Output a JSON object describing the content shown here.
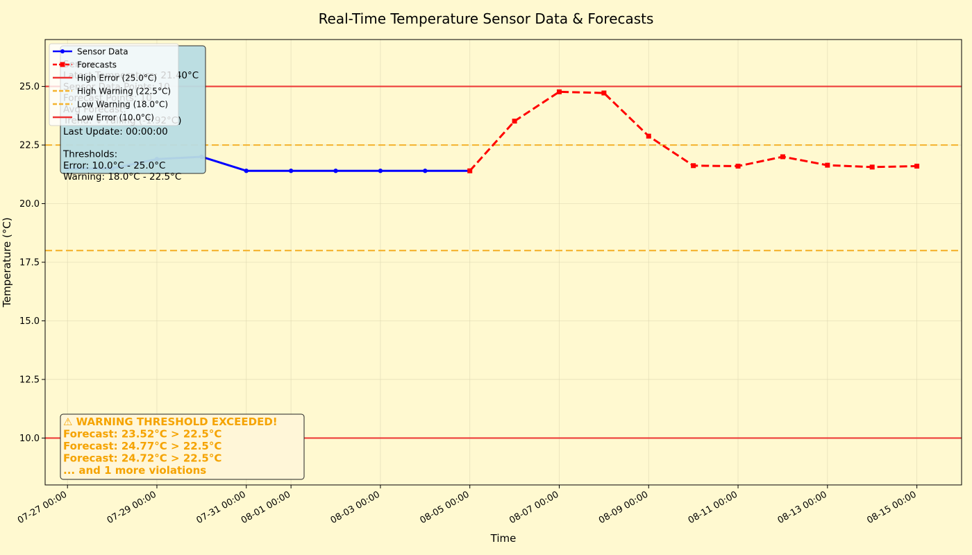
{
  "chart_data": {
    "type": "line",
    "title": "Real-Time Temperature Sensor Data & Forecasts",
    "xlabel": "Time",
    "ylabel": "Temperature (°C)",
    "xlim": [
      "2026-07-26T12:00",
      "2026-08-16T00:00"
    ],
    "ylim": [
      8.0,
      27.0
    ],
    "yticks": [
      10.0,
      12.5,
      15.0,
      17.5,
      20.0,
      22.5,
      25.0
    ],
    "yticklabels": [
      "10.0",
      "12.5",
      "15.0",
      "17.5",
      "20.0",
      "22.5",
      "25.0"
    ],
    "xticks": [
      "2026-07-27",
      "2026-07-29",
      "2026-07-31",
      "2026-08-01",
      "2026-08-03",
      "2026-08-05",
      "2026-08-07",
      "2026-08-09",
      "2026-08-11",
      "2026-08-13",
      "2026-08-15"
    ],
    "xticklabels": [
      "07-27 00:00",
      "07-29 00:00",
      "07-31 00:00",
      "08-01 00:00",
      "08-03 00:00",
      "08-05 00:00",
      "08-07 00:00",
      "08-09 00:00",
      "08-11 00:00",
      "08-13 00:00",
      "08-15 00:00"
    ],
    "grid": true,
    "legend_position": "upper-left",
    "series": [
      {
        "name": "Sensor Data",
        "color": "#0000ff",
        "style": "solid",
        "marker": "circle",
        "x": [
          "2026-07-27",
          "2026-07-28",
          "2026-07-29",
          "2026-07-30",
          "2026-07-31",
          "2026-08-01",
          "2026-08-02",
          "2026-08-03",
          "2026-08-04",
          "2026-08-05"
        ],
        "y": [
          21.5,
          21.5,
          21.9,
          22.0,
          21.4,
          21.4,
          21.4,
          21.4,
          21.4,
          21.4
        ]
      },
      {
        "name": "Forecasts",
        "color": "#ff0000",
        "style": "dashed",
        "marker": "square",
        "x": [
          "2026-08-05",
          "2026-08-06",
          "2026-08-07",
          "2026-08-08",
          "2026-08-09",
          "2026-08-10",
          "2026-08-11",
          "2026-08-12",
          "2026-08-13",
          "2026-08-14",
          "2026-08-15"
        ],
        "y": [
          21.4,
          23.52,
          24.77,
          24.72,
          22.88,
          21.62,
          21.6,
          22.0,
          21.64,
          21.56,
          21.6
        ]
      }
    ],
    "thresholds": [
      {
        "name": "High Error (25.0°C)",
        "value": 25.0,
        "color": "#ee3333",
        "style": "solid"
      },
      {
        "name": "High Warning (22.5°C)",
        "value": 22.5,
        "color": "#f5b32e",
        "style": "dashed"
      },
      {
        "name": "Low Warning (18.0°C)",
        "value": 18.0,
        "color": "#f5b32e",
        "style": "dashed"
      },
      {
        "name": "Low Error (10.0°C)",
        "value": 10.0,
        "color": "#ee3333",
        "style": "solid"
      }
    ],
    "info_box": {
      "lines": [
        "Sensor",
        "Latest Temperature: 21.40°C",
        "Sensor Data Points: 10",
        "Forecast Points: 10",
        "Avg Forecast:",
        "Trend: ↓ Falling (-1.92°C)",
        "Last Update: 00:00:00",
        "",
        "Thresholds:",
        "Error: 10.0°C - 25.0°C",
        "Warning: 18.0°C - 22.5°C"
      ],
      "background": "#b9dde3"
    },
    "warning_box": {
      "lines": [
        "⚠ WARNING THRESHOLD EXCEEDED!",
        "Forecast: 23.52°C > 22.5°C",
        "Forecast: 24.77°C > 22.5°C",
        "Forecast: 24.72°C > 22.5°C",
        "... and 1 more violations"
      ],
      "color": "#f5a300"
    }
  },
  "colors": {
    "background": "#fff9d0",
    "axes_face": "#fff9d0",
    "grid": "#dcd6b0"
  }
}
